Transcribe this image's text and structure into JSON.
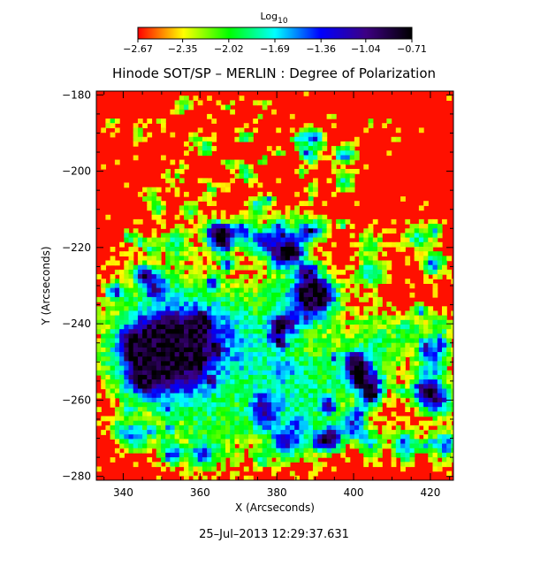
{
  "chart_data": {
    "type": "heatmap",
    "title": "Hinode SOT/SP – MERLIN : Degree of Polarization",
    "xlabel": "X (Arcseconds)",
    "ylabel": "Y (Arcseconds)",
    "xlim": [
      333,
      426
    ],
    "ylim": [
      -281,
      -179
    ],
    "x_ticks": [
      340,
      360,
      380,
      400,
      420
    ],
    "x_tick_labels": [
      "340",
      "360",
      "380",
      "400",
      "420"
    ],
    "y_ticks": [
      -180,
      -200,
      -220,
      -240,
      -260,
      -280
    ],
    "y_tick_labels": [
      "−180",
      "−200",
      "−220",
      "−240",
      "−260",
      "−280"
    ],
    "colorbar": {
      "label": "Log",
      "label_subscript": "10",
      "min": -2.67,
      "max": -0.71,
      "ticks": [
        -2.67,
        -2.35,
        -2.02,
        -1.69,
        -1.36,
        -1.04,
        -0.71
      ],
      "tick_labels": [
        "−2.67",
        "−2.35",
        "−2.02",
        "−1.69",
        "−1.36",
        "−1.04",
        "−0.71"
      ],
      "colormap": [
        "#ff0000",
        "#ffff00",
        "#00ff00",
        "#00ffff",
        "#0000ff",
        "#3d0082",
        "#000000"
      ]
    },
    "features": [
      {
        "name": "sunspot",
        "x": 349,
        "y": -248,
        "value": -0.85
      },
      {
        "name": "pore",
        "x": 390,
        "y": -232,
        "value": -1.1
      },
      {
        "name": "pore",
        "x": 421,
        "y": -259,
        "value": -1.15
      }
    ],
    "timestamp": "25–Jul–2013 12:29:37.631"
  }
}
